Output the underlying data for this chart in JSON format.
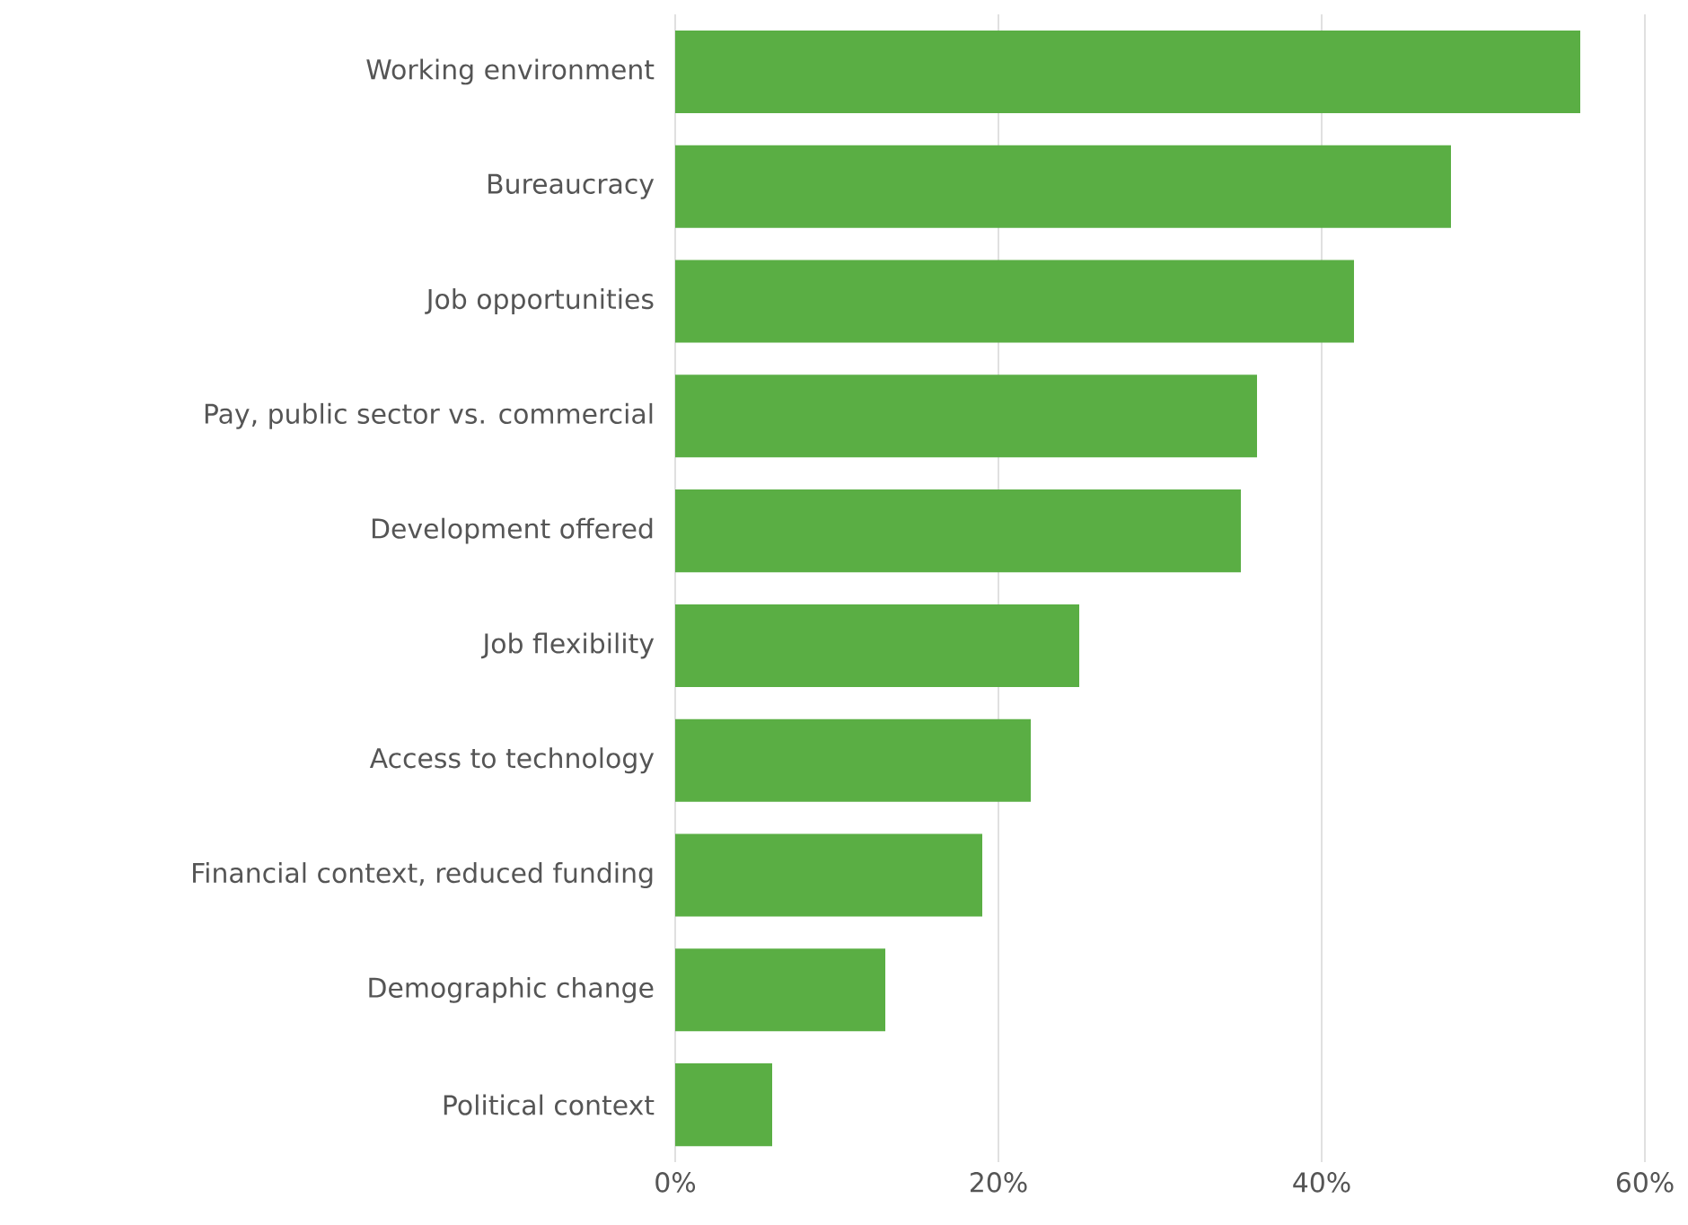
{
  "chart_data": {
    "type": "bar",
    "orientation": "horizontal",
    "categories": [
      "Working environment",
      "Bureaucracy",
      "Job opportunities",
      "Pay, public sector vs. commercial",
      "Development offered",
      "Job flexibility",
      "Access to technology",
      "Financial context, reduced funding",
      "Demographic change",
      "Political context"
    ],
    "values": [
      56,
      48,
      42,
      36,
      35,
      25,
      22,
      19,
      13,
      6
    ],
    "color": "#5aae44",
    "xlim": [
      0,
      60
    ],
    "xticks": [
      {
        "value": 0,
        "label": "0%"
      },
      {
        "value": 20,
        "label": "20%"
      },
      {
        "value": 40,
        "label": "40%"
      },
      {
        "value": 60,
        "label": "60%"
      }
    ],
    "grid": "x"
  }
}
